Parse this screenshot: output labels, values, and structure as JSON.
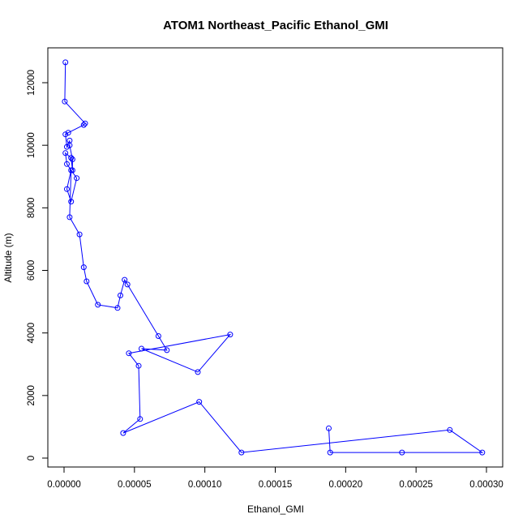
{
  "chart_data": {
    "type": "line",
    "title": "ATOM1 Northeast_Pacific Ethanol_GMI",
    "xlabel": "Ethanol_GMI",
    "ylabel": "Altitude (m)",
    "xlim": [
      0,
      0.0003
    ],
    "ylim": [
      0,
      12600
    ],
    "x_ticks": [
      0,
      5e-05,
      0.0001,
      0.00015,
      0.0002,
      0.00025,
      0.0003
    ],
    "x_tick_labels": [
      "0.00000",
      "0.00005",
      "0.00010",
      "0.00015",
      "0.00020",
      "0.00025",
      "0.00030"
    ],
    "y_ticks": [
      0,
      2000,
      4000,
      6000,
      8000,
      10000,
      12000
    ],
    "y_tick_labels": [
      "0",
      "2000",
      "4000",
      "6000",
      "8000",
      "10000",
      "12000"
    ],
    "grid": false,
    "series_color": "#0000ff",
    "marker": "open-circle",
    "series": [
      {
        "x": [
          1e-06,
          5e-07,
          1.5e-05,
          1.4e-05,
          3e-06,
          1e-06,
          2e-06,
          4e-06,
          4e-06,
          6e-06,
          6e-06,
          5e-06,
          1e-06,
          2e-06,
          9e-06,
          5e-06,
          2e-06,
          5e-06,
          4e-06,
          1.1e-05,
          1.4e-05,
          1.6e-05,
          2.4e-05,
          3.8e-05,
          4e-05,
          4.3e-05,
          4.5e-05,
          6.7e-05,
          7.3e-05,
          5.5e-05,
          9.5e-05,
          0.000118,
          4.6e-05,
          5.3e-05,
          5.4e-05,
          4.2e-05,
          9.6e-05,
          0.000126,
          0.000274,
          0.000297,
          0.00024,
          0.000189,
          0.000188
        ],
        "y": [
          12650,
          11400,
          10700,
          10650,
          10400,
          10350,
          9950,
          10150,
          10000,
          9550,
          9200,
          9600,
          9750,
          9400,
          8950,
          8200,
          8600,
          9200,
          7700,
          7150,
          6100,
          5650,
          4900,
          4800,
          5200,
          5700,
          5550,
          3900,
          3450,
          3500,
          2750,
          3950,
          3350,
          2950,
          1250,
          800,
          1800,
          180,
          900,
          180,
          180,
          180,
          950
        ]
      }
    ]
  }
}
